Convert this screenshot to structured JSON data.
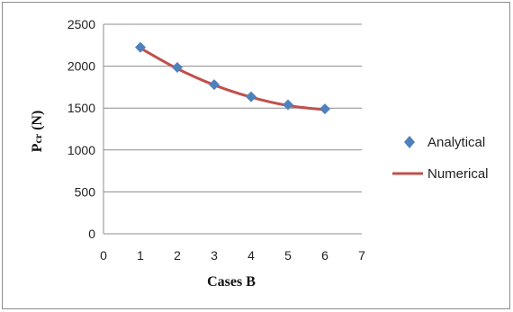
{
  "chart_data": {
    "type": "scatter",
    "xlabel": "Cases B",
    "ylabel_main": "P",
    "ylabel_sub": "cr",
    "ylabel_unit": " (N)",
    "xlim": [
      0,
      7
    ],
    "ylim": [
      0,
      2500
    ],
    "xticks": [
      "0",
      "1",
      "2",
      "3",
      "4",
      "5",
      "6",
      "7"
    ],
    "yticks": [
      "0",
      "500",
      "1000",
      "1500",
      "2000",
      "2500"
    ],
    "grid": "horizontal",
    "legend_position": "right",
    "series": [
      {
        "name": "Analytical",
        "kind": "markers",
        "marker": "diamond",
        "color": "#4F81BD",
        "x": [
          1,
          2,
          3,
          4,
          5,
          6
        ],
        "y": [
          2225,
          1985,
          1780,
          1635,
          1540,
          1490
        ]
      },
      {
        "name": "Numerical",
        "kind": "line",
        "color": "#C0504D",
        "x": [
          1,
          2,
          3,
          4,
          5,
          6
        ],
        "y": [
          2215,
          1970,
          1775,
          1630,
          1530,
          1480
        ]
      }
    ]
  }
}
